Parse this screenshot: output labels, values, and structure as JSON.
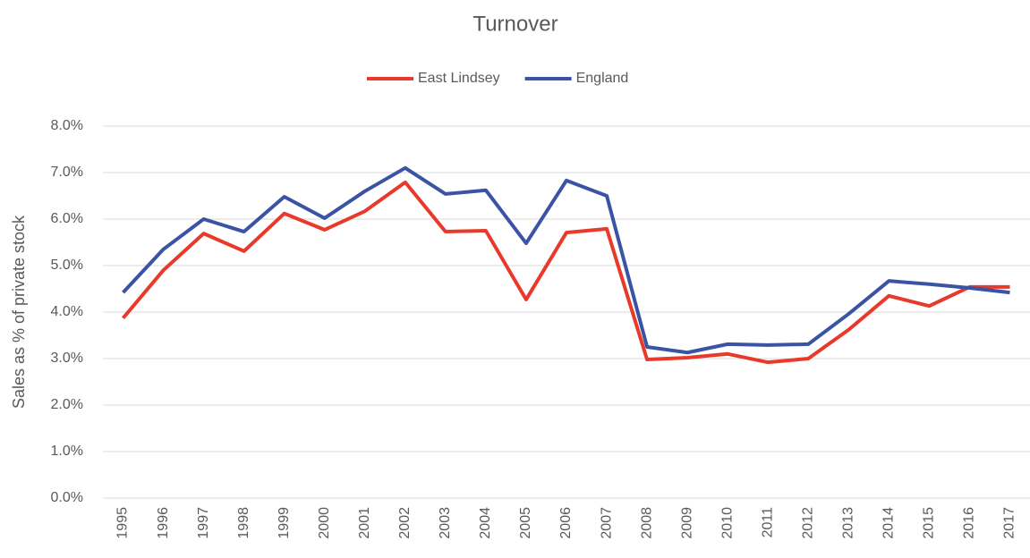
{
  "chart_data": {
    "type": "line",
    "title": "Turnover",
    "y_label": "Sales as % of private stock",
    "categories": [
      "1995",
      "1996",
      "1997",
      "1998",
      "1999",
      "2000",
      "2001",
      "2002",
      "2003",
      "2004",
      "2005",
      "2006",
      "2007",
      "2008",
      "2009",
      "2010",
      "2011",
      "2012",
      "2013",
      "2014",
      "2015",
      "2016",
      "2017"
    ],
    "series": [
      {
        "name": "East Lindsey",
        "color": "#e8392b",
        "values": [
          3.87,
          4.9,
          5.69,
          5.31,
          6.12,
          5.77,
          6.17,
          6.79,
          5.73,
          5.75,
          4.27,
          5.71,
          5.79,
          2.98,
          3.02,
          3.1,
          2.92,
          3.0,
          3.62,
          4.35,
          4.13,
          4.54,
          4.54
        ]
      },
      {
        "name": "England",
        "color": "#3a53a4",
        "values": [
          4.42,
          5.35,
          6.0,
          5.73,
          6.48,
          6.02,
          6.6,
          7.1,
          6.54,
          6.62,
          5.48,
          6.83,
          6.5,
          3.25,
          3.13,
          3.31,
          3.29,
          3.31,
          3.96,
          4.67,
          4.6,
          4.52,
          4.42
        ]
      }
    ],
    "ylim": [
      0,
      8
    ],
    "yticks": [
      {
        "value": 0,
        "label": "0.0%"
      },
      {
        "value": 1,
        "label": "1.0%"
      },
      {
        "value": 2,
        "label": "2.0%"
      },
      {
        "value": 3,
        "label": "3.0%"
      },
      {
        "value": 4,
        "label": "4.0%"
      },
      {
        "value": 5,
        "label": "5.0%"
      },
      {
        "value": 6,
        "label": "6.0%"
      },
      {
        "value": 7,
        "label": "7.0%"
      },
      {
        "value": 8,
        "label": "8.0%"
      }
    ],
    "grid": true,
    "legend": "top"
  }
}
